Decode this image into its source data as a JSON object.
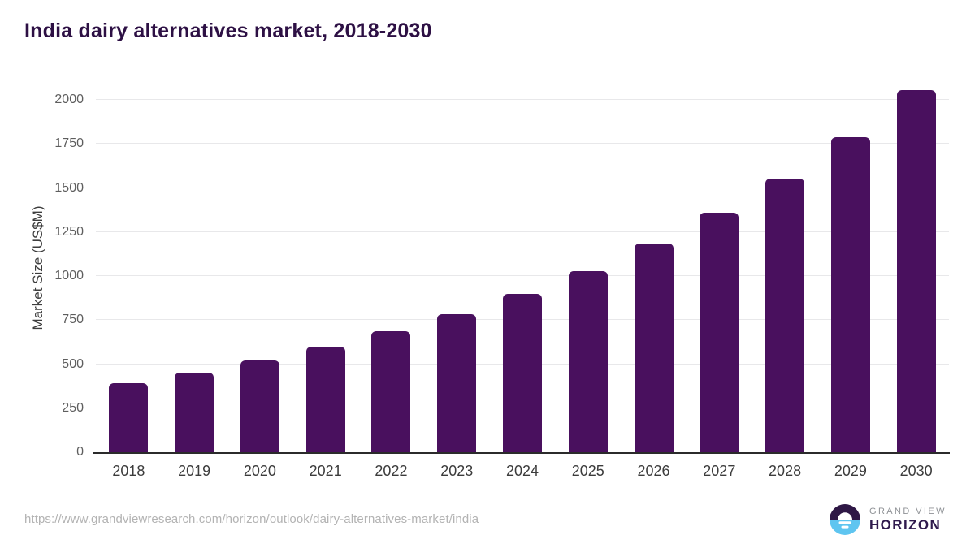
{
  "page": {
    "title": "India dairy alternatives market, 2018-2030",
    "source_url": "https://www.grandviewresearch.com/horizon/outlook/dairy-alternatives-market/india"
  },
  "logo": {
    "brand_top": "GRAND VIEW",
    "brand_bottom": "HORIZON",
    "mark_purple": "#2e1745",
    "mark_blue": "#5fc5f0"
  },
  "chart_data": {
    "type": "bar",
    "title": "India dairy alternatives market, 2018-2030",
    "xlabel": "",
    "ylabel": "Market Size (US$M)",
    "categories": [
      "2018",
      "2019",
      "2020",
      "2021",
      "2022",
      "2023",
      "2024",
      "2025",
      "2026",
      "2027",
      "2028",
      "2029",
      "2030"
    ],
    "values": [
      390,
      450,
      520,
      600,
      685,
      785,
      900,
      1030,
      1185,
      1360,
      1555,
      1790,
      2055
    ],
    "ylim": [
      0,
      2090
    ],
    "yticks": [
      0,
      250,
      500,
      750,
      1000,
      1250,
      1500,
      1750,
      2000
    ],
    "grid": "horizontal",
    "legend": "none",
    "bar_color": "#49105E",
    "grid_color": "#e8e8ea",
    "axis_line_color": "#2b2b2b",
    "title_color": "#2d1044",
    "tick_text_color": "#5e5e5e",
    "category_text_color": "#3c3c3c"
  }
}
